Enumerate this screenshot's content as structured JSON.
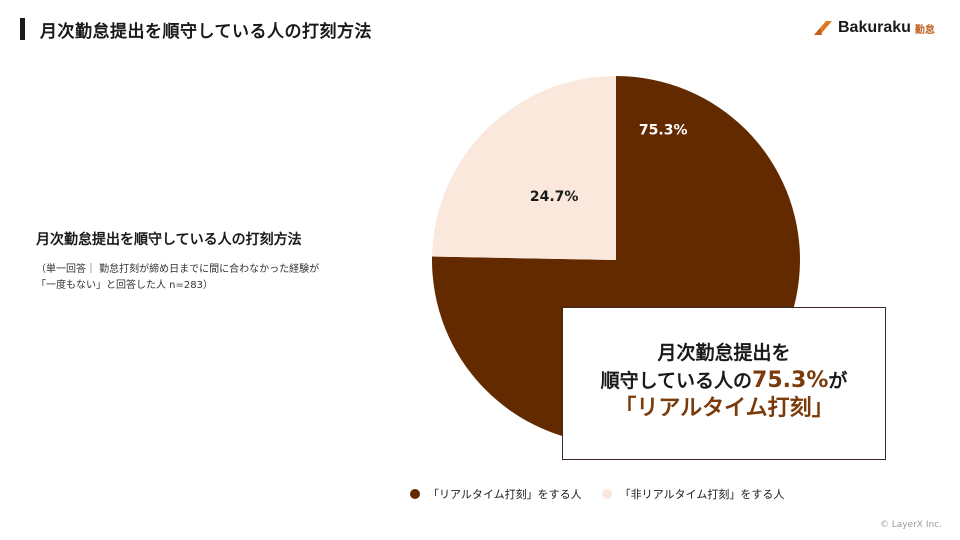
{
  "slide": {
    "title": "月次勤怠提出を順守している人の打刻方法",
    "copyright": "© LayerX Inc."
  },
  "logo": {
    "wordmark": "Bakuraku",
    "product": "勤怠",
    "icon": "bakuraku-logo-icon",
    "accent_color": "#e0781f"
  },
  "chart_note": {
    "title": "月次勤怠提出を順守している人の打刻方法",
    "line1": "（単一回答｜ 勤怠打刻が締め日までに間に合わなかった経験が",
    "line2": "「一度もない」と回答した人 n=283）"
  },
  "callout": {
    "line1": "月次勤怠提出を",
    "line2_prefix": "順守している人の",
    "line2_highlight": "75.3%",
    "line2_suffix": "が",
    "line3": "「リアルタイム打刻」"
  },
  "chart_data": {
    "type": "pie",
    "title": "月次勤怠提出を順守している人の打刻方法",
    "legend_position": "bottom",
    "series": [
      {
        "name": "「リアルタイム打刻」をする人",
        "value": 75.3,
        "label": "75.3%",
        "color": "#632a00",
        "label_color": "#ffffff"
      },
      {
        "name": "「非リアルタイム打刻」をする人",
        "value": 24.7,
        "label": "24.7%",
        "color": "#fbe8dc",
        "label_color": "#1a1a1a"
      }
    ]
  }
}
